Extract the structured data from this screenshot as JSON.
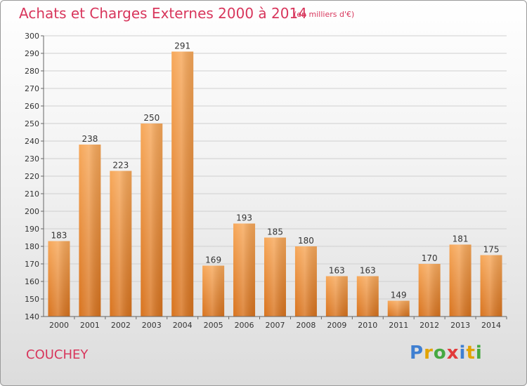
{
  "title": "Achats et Charges Externes 2000 à 2014",
  "subtitle": "(en milliers d'€)",
  "town": "COUCHEY",
  "logo": {
    "letters": [
      "P",
      "r",
      "o",
      "x",
      "i",
      "t",
      "i"
    ],
    "colors": [
      "#3f7fd1",
      "#e2a300",
      "#46a942",
      "#e23a3a",
      "#3f7fd1",
      "#e2a300",
      "#46a942"
    ]
  },
  "chart_data": {
    "type": "bar",
    "categories": [
      "2000",
      "2001",
      "2002",
      "2003",
      "2004",
      "2005",
      "2006",
      "2007",
      "2008",
      "2009",
      "2010",
      "2011",
      "2012",
      "2013",
      "2014"
    ],
    "values": [
      183,
      238,
      223,
      250,
      291,
      169,
      193,
      185,
      180,
      163,
      163,
      149,
      170,
      181,
      175
    ],
    "ylim": [
      140,
      300
    ],
    "yticks": [
      140,
      150,
      160,
      170,
      180,
      190,
      200,
      210,
      220,
      230,
      240,
      250,
      260,
      270,
      280,
      290,
      300
    ],
    "grid": true,
    "bar_color": "#f0963c"
  }
}
